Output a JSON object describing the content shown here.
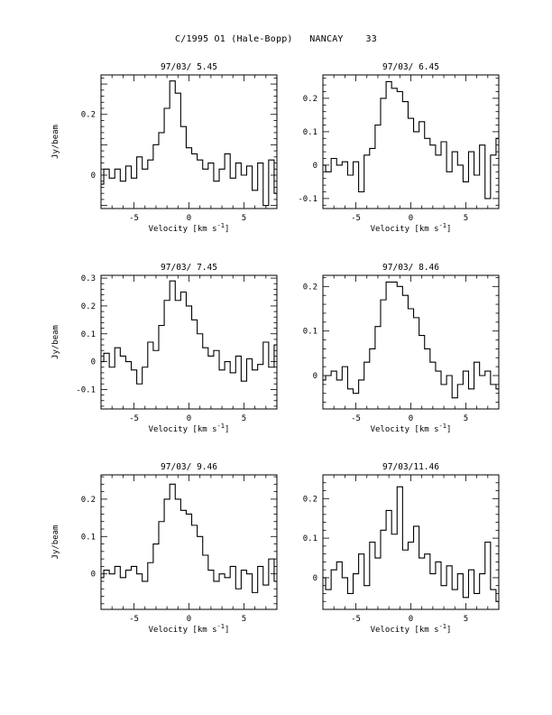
{
  "page": {
    "title": "C/1995 O1 (Hale-Bopp)   NANCAY    33"
  },
  "colors": {
    "ink": "#000000",
    "background": "#ffffff"
  },
  "chart_data": [
    {
      "type": "line",
      "title": "97/03/ 5.45",
      "xlabel": "Velocity [km s",
      "xlabel_sup": "-1",
      "xlabel_close": "]",
      "ylabel": "Jy/beam",
      "xlim": [
        -8,
        8
      ],
      "ylim": [
        -0.11,
        0.33
      ],
      "xticks": [
        -5,
        0,
        5
      ],
      "yticks": [
        0,
        0.2
      ],
      "x": [
        -8.0,
        -7.5,
        -7.0,
        -6.5,
        -6.0,
        -5.5,
        -5.0,
        -4.5,
        -4.0,
        -3.5,
        -3.0,
        -2.5,
        -2.0,
        -1.5,
        -1.0,
        -0.5,
        0.0,
        0.5,
        1.0,
        1.5,
        2.0,
        2.5,
        3.0,
        3.5,
        4.0,
        4.5,
        5.0,
        5.5,
        6.0,
        6.5,
        7.0,
        7.5,
        8.0
      ],
      "y": [
        -0.03,
        0.02,
        -0.01,
        0.02,
        -0.02,
        0.03,
        -0.01,
        0.06,
        0.02,
        0.05,
        0.1,
        0.14,
        0.22,
        0.31,
        0.27,
        0.16,
        0.09,
        0.07,
        0.05,
        0.02,
        0.04,
        -0.02,
        0.02,
        0.07,
        -0.01,
        0.04,
        0.0,
        0.03,
        -0.05,
        0.04,
        -0.1,
        0.05,
        -0.06
      ]
    },
    {
      "type": "line",
      "title": "97/03/ 6.45",
      "xlabel": "Velocity [km s",
      "xlabel_sup": "-1",
      "xlabel_close": "]",
      "ylabel": "",
      "xlim": [
        -8,
        8
      ],
      "ylim": [
        -0.13,
        0.27
      ],
      "xticks": [
        -5,
        0,
        5
      ],
      "yticks": [
        -0.1,
        0,
        0.1,
        0.2
      ],
      "x": [
        -8.0,
        -7.5,
        -7.0,
        -6.5,
        -6.0,
        -5.5,
        -5.0,
        -4.5,
        -4.0,
        -3.5,
        -3.0,
        -2.5,
        -2.0,
        -1.5,
        -1.0,
        -0.5,
        0.0,
        0.5,
        1.0,
        1.5,
        2.0,
        2.5,
        3.0,
        3.5,
        4.0,
        4.5,
        5.0,
        5.5,
        6.0,
        6.5,
        7.0,
        7.5,
        8.0
      ],
      "y": [
        0.0,
        -0.02,
        0.02,
        0.0,
        0.01,
        -0.03,
        0.01,
        -0.08,
        0.03,
        0.05,
        0.12,
        0.2,
        0.25,
        0.23,
        0.22,
        0.19,
        0.14,
        0.1,
        0.13,
        0.08,
        0.06,
        0.03,
        0.07,
        -0.02,
        0.04,
        0.0,
        -0.05,
        0.04,
        -0.03,
        0.06,
        -0.1,
        0.03,
        0.08
      ]
    },
    {
      "type": "line",
      "title": "97/03/ 7.45",
      "xlabel": "Velocity [km s",
      "xlabel_sup": "-1",
      "xlabel_close": "]",
      "ylabel": "Jy/beam",
      "xlim": [
        -8,
        8
      ],
      "ylim": [
        -0.17,
        0.31
      ],
      "xticks": [
        -5,
        0,
        5
      ],
      "yticks": [
        -0.1,
        0,
        0.1,
        0.2,
        0.3
      ],
      "x": [
        -8.0,
        -7.5,
        -7.0,
        -6.5,
        -6.0,
        -5.5,
        -5.0,
        -4.5,
        -4.0,
        -3.5,
        -3.0,
        -2.5,
        -2.0,
        -1.5,
        -1.0,
        -0.5,
        0.0,
        0.5,
        1.0,
        1.5,
        2.0,
        2.5,
        3.0,
        3.5,
        4.0,
        4.5,
        5.0,
        5.5,
        6.0,
        6.5,
        7.0,
        7.5,
        8.0
      ],
      "y": [
        0.0,
        0.03,
        -0.02,
        0.05,
        0.02,
        0.0,
        -0.03,
        -0.08,
        -0.02,
        0.07,
        0.04,
        0.13,
        0.22,
        0.29,
        0.22,
        0.25,
        0.2,
        0.15,
        0.1,
        0.05,
        0.02,
        0.04,
        -0.03,
        0.0,
        -0.04,
        0.02,
        -0.07,
        0.01,
        -0.03,
        -0.01,
        0.07,
        -0.02,
        0.06
      ]
    },
    {
      "type": "line",
      "title": "97/03/ 8.46",
      "xlabel": "Velocity [km s",
      "xlabel_sup": "-1",
      "xlabel_close": "]",
      "ylabel": "",
      "xlim": [
        -8,
        8
      ],
      "ylim": [
        -0.075,
        0.225
      ],
      "xticks": [
        -5,
        0,
        5
      ],
      "yticks": [
        0,
        0.1,
        0.2
      ],
      "x": [
        -8.0,
        -7.5,
        -7.0,
        -6.5,
        -6.0,
        -5.5,
        -5.0,
        -4.5,
        -4.0,
        -3.5,
        -3.0,
        -2.5,
        -2.0,
        -1.5,
        -1.0,
        -0.5,
        0.0,
        0.5,
        1.0,
        1.5,
        2.0,
        2.5,
        3.0,
        3.5,
        4.0,
        4.5,
        5.0,
        5.5,
        6.0,
        6.5,
        7.0,
        7.5,
        8.0
      ],
      "y": [
        -0.01,
        0.0,
        0.01,
        -0.01,
        0.02,
        -0.03,
        -0.04,
        -0.01,
        0.03,
        0.06,
        0.11,
        0.17,
        0.21,
        0.21,
        0.2,
        0.18,
        0.15,
        0.13,
        0.09,
        0.06,
        0.03,
        0.01,
        -0.02,
        0.0,
        -0.05,
        -0.02,
        0.01,
        -0.03,
        0.03,
        0.0,
        0.01,
        -0.02,
        -0.03
      ]
    },
    {
      "type": "line",
      "title": "97/03/ 9.46",
      "xlabel": "Velocity [km s",
      "xlabel_sup": "-1",
      "xlabel_close": "]",
      "ylabel": "Jy/beam",
      "xlim": [
        -8,
        8
      ],
      "ylim": [
        -0.095,
        0.265
      ],
      "xticks": [
        -5,
        0,
        5
      ],
      "yticks": [
        0,
        0.1,
        0.2
      ],
      "x": [
        -8.0,
        -7.5,
        -7.0,
        -6.5,
        -6.0,
        -5.5,
        -5.0,
        -4.5,
        -4.0,
        -3.5,
        -3.0,
        -2.5,
        -2.0,
        -1.5,
        -1.0,
        -0.5,
        0.0,
        0.5,
        1.0,
        1.5,
        2.0,
        2.5,
        3.0,
        3.5,
        4.0,
        4.5,
        5.0,
        5.5,
        6.0,
        6.5,
        7.0,
        7.5,
        8.0
      ],
      "y": [
        -0.01,
        0.01,
        0.0,
        0.02,
        -0.01,
        0.01,
        0.02,
        0.0,
        -0.02,
        0.03,
        0.08,
        0.14,
        0.2,
        0.24,
        0.2,
        0.17,
        0.16,
        0.13,
        0.1,
        0.05,
        0.01,
        -0.02,
        0.0,
        -0.01,
        0.02,
        -0.04,
        0.01,
        0.0,
        -0.05,
        0.02,
        -0.03,
        0.04,
        -0.02
      ]
    },
    {
      "type": "line",
      "title": "97/03/11.46",
      "xlabel": "Velocity [km s",
      "xlabel_sup": "-1",
      "xlabel_close": "]",
      "ylabel": "",
      "xlim": [
        -8,
        8
      ],
      "ylim": [
        -0.08,
        0.26
      ],
      "xticks": [
        -5,
        0,
        5
      ],
      "yticks": [
        0,
        0.1,
        0.2
      ],
      "x": [
        -8.0,
        -7.5,
        -7.0,
        -6.5,
        -6.0,
        -5.5,
        -5.0,
        -4.5,
        -4.0,
        -3.5,
        -3.0,
        -2.5,
        -2.0,
        -1.5,
        -1.0,
        -0.5,
        0.0,
        0.5,
        1.0,
        1.5,
        2.0,
        2.5,
        3.0,
        3.5,
        4.0,
        4.5,
        5.0,
        5.5,
        6.0,
        6.5,
        7.0,
        7.5,
        8.0
      ],
      "y": [
        0.0,
        -0.03,
        0.02,
        0.04,
        0.0,
        -0.04,
        0.01,
        0.06,
        -0.02,
        0.09,
        0.05,
        0.12,
        0.17,
        0.11,
        0.23,
        0.07,
        0.09,
        0.13,
        0.05,
        0.06,
        0.01,
        0.04,
        -0.02,
        0.03,
        -0.03,
        0.01,
        -0.05,
        0.02,
        -0.04,
        0.01,
        0.09,
        -0.03,
        -0.06
      ]
    }
  ]
}
